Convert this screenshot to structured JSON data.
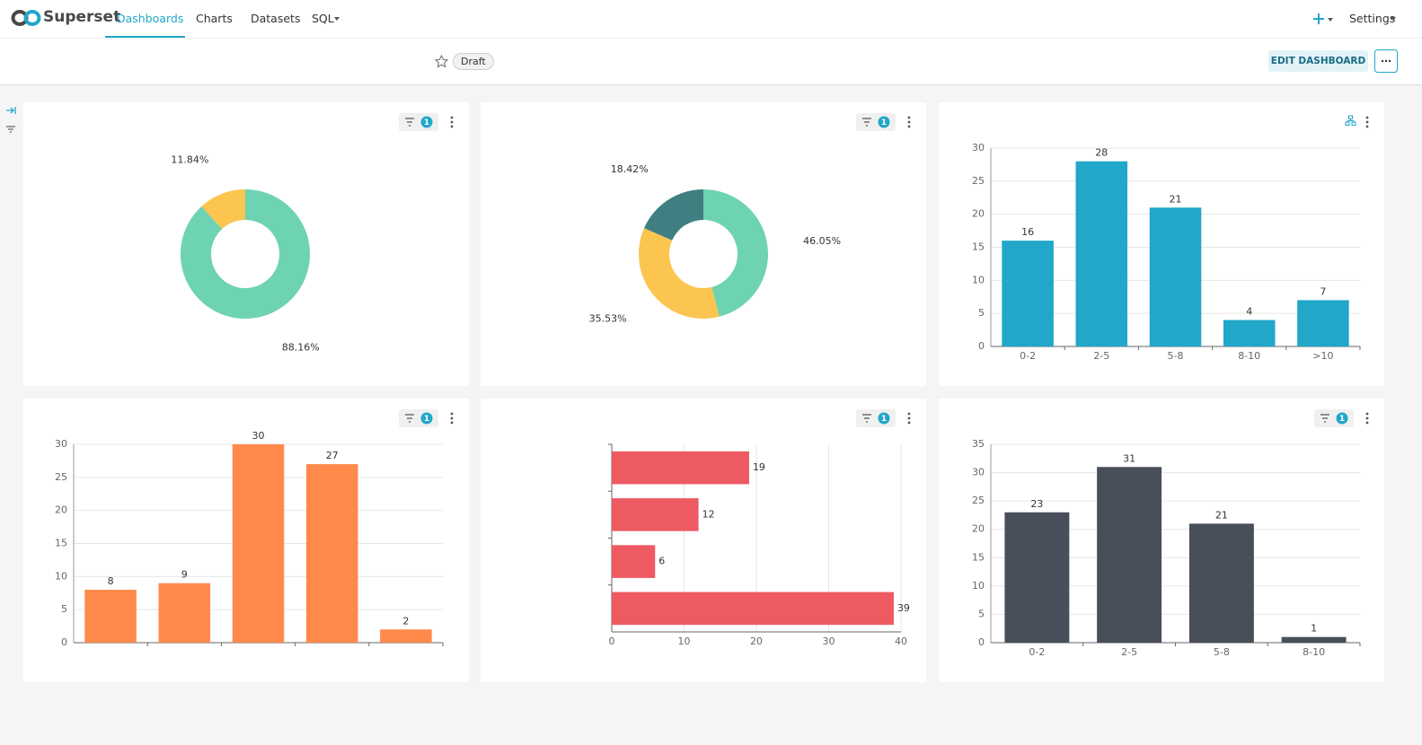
{
  "nav": {
    "logo": "Superset",
    "tabs": [
      "Dashboards",
      "Charts",
      "Datasets",
      "SQL"
    ],
    "settings": "Settings"
  },
  "header": {
    "status": "Draft",
    "edit_button": "EDIT DASHBOARD"
  },
  "chart_data": [
    {
      "type": "pie",
      "values": [
        88.16,
        11.84
      ],
      "value_labels": [
        "88.16%",
        "11.84%"
      ],
      "colors": [
        "#6dd3b3",
        "#fcc550"
      ],
      "filter_count": 1
    },
    {
      "type": "pie",
      "values": [
        46.05,
        35.53,
        18.42
      ],
      "value_labels": [
        "46.05%",
        "35.53%",
        "18.42%"
      ],
      "colors": [
        "#6dd3b3",
        "#fcc550",
        "#3f7f82"
      ],
      "filter_count": 1
    },
    {
      "type": "bar",
      "categories": [
        "0-2",
        "2-5",
        "5-8",
        "8-10",
        ">10"
      ],
      "values": [
        16,
        28,
        21,
        4,
        7
      ],
      "color": "#20a7c9",
      "ylim": [
        0,
        30
      ],
      "yticks": [
        0,
        5,
        10,
        15,
        20,
        25,
        30
      ],
      "grid": true
    },
    {
      "type": "bar",
      "categories": [
        null,
        null,
        null,
        null,
        null
      ],
      "values": [
        8,
        9,
        30,
        27,
        2
      ],
      "color": "#ff8a4c",
      "ylim": [
        0,
        30
      ],
      "yticks": [
        0,
        5,
        10,
        15,
        20,
        25,
        30
      ],
      "grid": true,
      "filter_count": 1
    },
    {
      "type": "bar",
      "horizontal": true,
      "categories": [
        null,
        null,
        null,
        null
      ],
      "values": [
        19,
        12,
        6,
        39
      ],
      "color": "#ee5a62",
      "xlim": [
        0,
        40
      ],
      "xticks": [
        0,
        10,
        20,
        30,
        40
      ],
      "grid": true,
      "filter_count": 1
    },
    {
      "type": "bar",
      "categories": [
        "0-2",
        "2-5",
        "5-8",
        "8-10"
      ],
      "values": [
        23,
        31,
        21,
        1
      ],
      "color": "#484e5a",
      "ylim": [
        0,
        35
      ],
      "yticks": [
        0,
        5,
        10,
        15,
        20,
        25,
        30,
        35
      ],
      "grid": true,
      "filter_count": 1
    }
  ]
}
